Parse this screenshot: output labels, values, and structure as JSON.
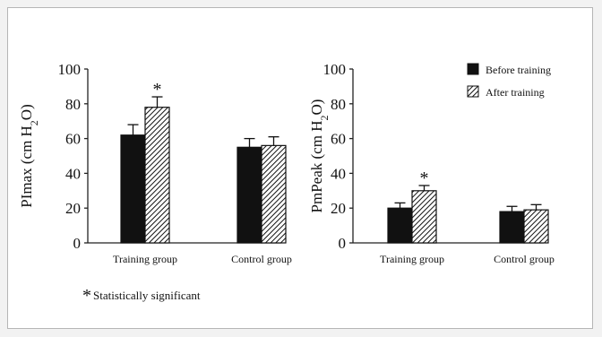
{
  "chart_data": [
    {
      "type": "bar",
      "ylabel": "PImax (cm H2O)",
      "ylabel_parts": {
        "pre": "PImax (cm H",
        "sub": "2",
        "post": "O)"
      },
      "ylim": [
        0,
        100
      ],
      "yticks": [
        "0",
        "20",
        "40",
        "60",
        "80",
        "100"
      ],
      "categories": [
        "Training group",
        "Control group"
      ],
      "series": [
        {
          "name": "Before training",
          "values": [
            62,
            55
          ],
          "errors": [
            6,
            5
          ]
        },
        {
          "name": "After training",
          "values": [
            78,
            56
          ],
          "errors": [
            6,
            5
          ]
        }
      ],
      "annotations": [
        {
          "text": "*",
          "category": 0,
          "series": 1
        }
      ]
    },
    {
      "type": "bar",
      "ylabel": "PmPeak (cm H2O)",
      "ylabel_parts": {
        "pre": "PmPeak (cm H",
        "sub": "2",
        "post": "O)"
      },
      "ylim": [
        0,
        100
      ],
      "yticks": [
        "0",
        "20",
        "40",
        "60",
        "80",
        "100"
      ],
      "categories": [
        "Training group",
        "Control group"
      ],
      "series": [
        {
          "name": "Before training",
          "values": [
            20,
            18
          ],
          "errors": [
            3,
            3
          ]
        },
        {
          "name": "After training",
          "values": [
            30,
            19
          ],
          "errors": [
            3,
            3
          ]
        }
      ],
      "annotations": [
        {
          "text": "*",
          "category": 0,
          "series": 1
        }
      ],
      "legend": {
        "placement": "top-right",
        "entries": [
          "Before training",
          "After training"
        ]
      }
    }
  ],
  "footnote": {
    "symbol": "*",
    "text": "Statistically significant"
  },
  "colors": {
    "before": "#111111",
    "after_hatch": "#111111",
    "axis": "#222222"
  }
}
